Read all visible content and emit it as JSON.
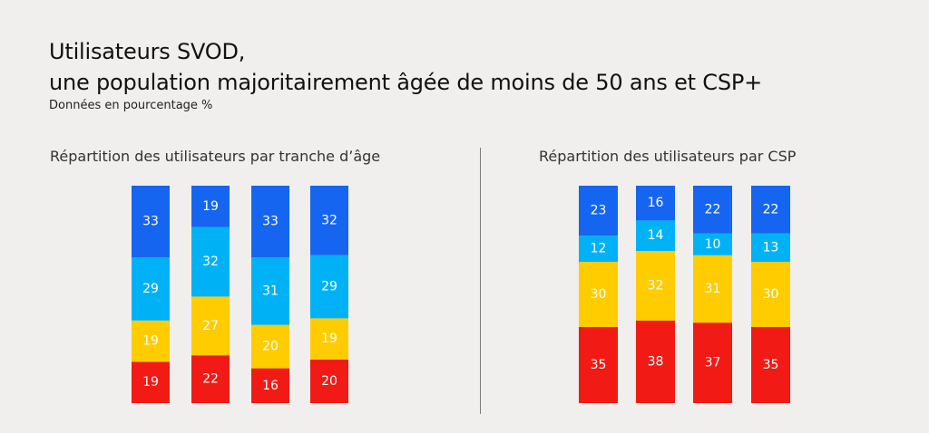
{
  "title_line1": "Utilisateurs SVOD,",
  "title_line2": "une population majoritairement âgée de moins de 50 ans et CSP+",
  "subtitle": "Données en pourcentage %",
  "colors": {
    "dark_blue": "#1565f0",
    "light_blue": "#00b2f5",
    "yellow": "#ffcc00",
    "red": "#f21a14"
  },
  "chart_data": [
    {
      "type": "bar",
      "stacked": true,
      "normalized": true,
      "title": "Répartition des utilisateurs par tranche d’âge",
      "categories": [
        "",
        "",
        "",
        ""
      ],
      "series": [
        {
          "color": "#f21a14",
          "values": [
            19,
            22,
            16,
            20
          ]
        },
        {
          "color": "#ffcc00",
          "values": [
            19,
            27,
            20,
            19
          ]
        },
        {
          "color": "#00b2f5",
          "values": [
            29,
            32,
            31,
            29
          ]
        },
        {
          "color": "#1565f0",
          "values": [
            33,
            19,
            33,
            32
          ]
        }
      ],
      "ylim": [
        0,
        100
      ],
      "grid": false,
      "legend": "none"
    },
    {
      "type": "bar",
      "stacked": true,
      "normalized": true,
      "title": "Répartition des utilisateurs par CSP",
      "categories": [
        "",
        "",
        "",
        ""
      ],
      "series": [
        {
          "color": "#f21a14",
          "values": [
            35,
            38,
            37,
            35
          ]
        },
        {
          "color": "#ffcc00",
          "values": [
            30,
            32,
            31,
            30
          ]
        },
        {
          "color": "#00b2f5",
          "values": [
            12,
            14,
            10,
            13
          ]
        },
        {
          "color": "#1565f0",
          "values": [
            23,
            16,
            22,
            22
          ]
        }
      ],
      "ylim": [
        0,
        100
      ],
      "grid": false,
      "legend": "none"
    }
  ]
}
